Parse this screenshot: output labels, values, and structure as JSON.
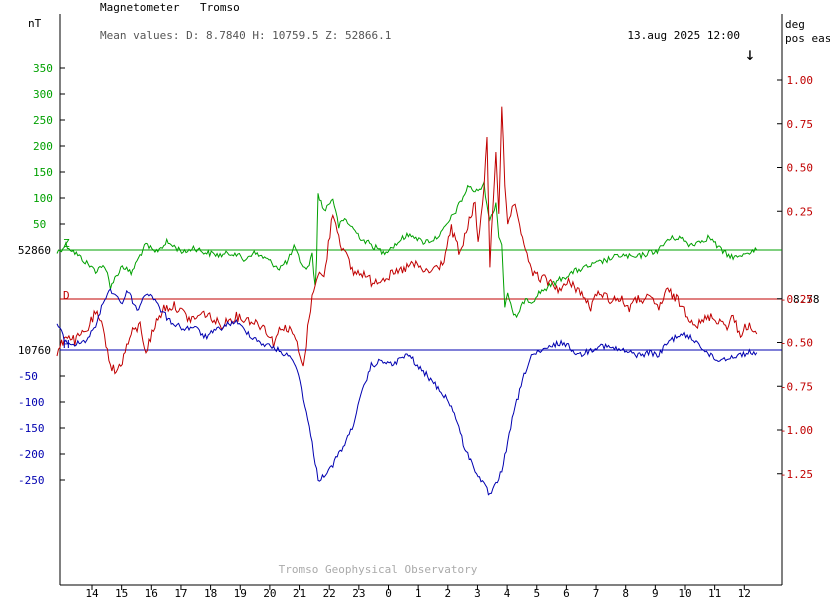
{
  "header": {
    "instrument": "Magnetometer",
    "station": "Tromso",
    "mean_values": "Mean values:  D: 8.7840   H: 10759.5   Z: 52866.1",
    "timestamp": "13.aug 2025 12:00",
    "arrow": "↓"
  },
  "footer": {
    "credit": "Tromso Geophysical Observatory"
  },
  "chart_data": {
    "type": "line",
    "left_axis": {
      "unit": "nT",
      "green_ticks": [
        "350",
        "300",
        "250",
        "200",
        "150",
        "100",
        "50"
      ],
      "blue_ticks": [
        "-50",
        "-100",
        "-150",
        "-200",
        "-250"
      ],
      "z_baseline": "52860",
      "h_baseline": "10760"
    },
    "right_axis": {
      "unit_line1": "deg",
      "unit_line2": "pos east",
      "ticks": [
        "1.00",
        "0.75",
        "0.50",
        "0.25",
        "-0.25",
        "-0.50",
        "-0.75",
        "-1.00",
        "-1.25"
      ],
      "d_baseline": "8.78"
    },
    "x_ticks": [
      "14",
      "15",
      "16",
      "17",
      "18",
      "19",
      "20",
      "21",
      "22",
      "23",
      "0",
      "1",
      "2",
      "3",
      "4",
      "5",
      "6",
      "7",
      "8",
      "9",
      "10",
      "11",
      "12"
    ],
    "series": [
      {
        "name": "Z",
        "color": "#00a000",
        "points": [
          [
            13,
            -5
          ],
          [
            13.3,
            10
          ],
          [
            13.6,
            -5
          ],
          [
            14,
            -25
          ],
          [
            14.3,
            -40
          ],
          [
            14.5,
            -30
          ],
          [
            14.7,
            -45
          ],
          [
            14.8,
            -70
          ],
          [
            15,
            -50
          ],
          [
            15.2,
            -30
          ],
          [
            15.5,
            -45
          ],
          [
            15.8,
            -10
          ],
          [
            16,
            10
          ],
          [
            16.3,
            -5
          ],
          [
            16.5,
            5
          ],
          [
            16.7,
            15
          ],
          [
            17,
            5
          ],
          [
            17.3,
            -5
          ],
          [
            17.6,
            5
          ],
          [
            18,
            -5
          ],
          [
            18.5,
            -10
          ],
          [
            19,
            -5
          ],
          [
            19.3,
            -20
          ],
          [
            19.6,
            -5
          ],
          [
            20,
            -15
          ],
          [
            20.5,
            -35
          ],
          [
            20.8,
            -20
          ],
          [
            21,
            5
          ],
          [
            21.2,
            -20
          ],
          [
            21.4,
            -40
          ],
          [
            21.6,
            -10
          ],
          [
            21.7,
            -70
          ],
          [
            21.75,
            -20
          ],
          [
            21.8,
            110
          ],
          [
            22,
            75
          ],
          [
            22.3,
            100
          ],
          [
            22.5,
            45
          ],
          [
            22.7,
            60
          ],
          [
            23,
            40
          ],
          [
            23.3,
            20
          ],
          [
            23.6,
            10
          ],
          [
            0,
            -5
          ],
          [
            0.4,
            10
          ],
          [
            0.7,
            25
          ],
          [
            1,
            30
          ],
          [
            1.3,
            15
          ],
          [
            1.7,
            20
          ],
          [
            2,
            35
          ],
          [
            2.5,
            80
          ],
          [
            2.9,
            125
          ],
          [
            3.1,
            110
          ],
          [
            3.4,
            125
          ],
          [
            3.6,
            55
          ],
          [
            3.8,
            90
          ],
          [
            3.9,
            30
          ],
          [
            4,
            10
          ],
          [
            4.1,
            -110
          ],
          [
            4.2,
            -80
          ],
          [
            4.4,
            -130
          ],
          [
            4.6,
            -120
          ],
          [
            4.8,
            -90
          ],
          [
            5,
            -100
          ],
          [
            5.3,
            -80
          ],
          [
            5.6,
            -70
          ],
          [
            6,
            -55
          ],
          [
            6.5,
            -40
          ],
          [
            7,
            -30
          ],
          [
            7.5,
            -20
          ],
          [
            8,
            -10
          ],
          [
            8.5,
            -15
          ],
          [
            9,
            -5
          ],
          [
            9.3,
            0
          ],
          [
            9.6,
            20
          ],
          [
            10,
            25
          ],
          [
            10.3,
            10
          ],
          [
            10.6,
            15
          ],
          [
            11,
            25
          ],
          [
            11.3,
            5
          ],
          [
            11.6,
            -10
          ],
          [
            12,
            -15
          ],
          [
            12.2,
            -5
          ],
          [
            12.6,
            0
          ]
        ]
      },
      {
        "name": "D",
        "color": "#c00000",
        "points": [
          [
            13,
            -0.32
          ],
          [
            13.3,
            -0.2
          ],
          [
            13.6,
            -0.24
          ],
          [
            14,
            -0.18
          ],
          [
            14.3,
            -0.08
          ],
          [
            14.5,
            -0.15
          ],
          [
            14.7,
            -0.28
          ],
          [
            14.8,
            -0.38
          ],
          [
            15,
            -0.42
          ],
          [
            15.2,
            -0.35
          ],
          [
            15.5,
            -0.2
          ],
          [
            15.8,
            -0.15
          ],
          [
            16,
            -0.3
          ],
          [
            16.3,
            -0.15
          ],
          [
            16.6,
            -0.05
          ],
          [
            17,
            -0.04
          ],
          [
            17.5,
            -0.12
          ],
          [
            18,
            -0.08
          ],
          [
            18.5,
            -0.15
          ],
          [
            19,
            -0.1
          ],
          [
            19.5,
            -0.12
          ],
          [
            20,
            -0.16
          ],
          [
            20.3,
            -0.25
          ],
          [
            20.6,
            -0.15
          ],
          [
            21,
            -0.2
          ],
          [
            21.3,
            -0.4
          ],
          [
            21.5,
            -0.1
          ],
          [
            21.7,
            0.1
          ],
          [
            21.8,
            0.15
          ],
          [
            22,
            0.12
          ],
          [
            22.3,
            0.5
          ],
          [
            22.6,
            0.3
          ],
          [
            23,
            0.15
          ],
          [
            23.3,
            0.15
          ],
          [
            23.6,
            0.1
          ],
          [
            0,
            0.12
          ],
          [
            0.5,
            0.15
          ],
          [
            1,
            0.2
          ],
          [
            1.5,
            0.15
          ],
          [
            2,
            0.2
          ],
          [
            2.3,
            0.4
          ],
          [
            2.6,
            0.25
          ],
          [
            2.9,
            0.45
          ],
          [
            3.1,
            0.55
          ],
          [
            3.2,
            0.3
          ],
          [
            3.4,
            0.65
          ],
          [
            3.5,
            0.9
          ],
          [
            3.6,
            0.2
          ],
          [
            3.8,
            0.85
          ],
          [
            3.9,
            0.5
          ],
          [
            4,
            1.1
          ],
          [
            4.1,
            0.65
          ],
          [
            4.2,
            0.4
          ],
          [
            4.4,
            0.55
          ],
          [
            4.6,
            0.4
          ],
          [
            4.8,
            0.3
          ],
          [
            5,
            0.15
          ],
          [
            5.3,
            0.12
          ],
          [
            5.6,
            0.1
          ],
          [
            6,
            0.05
          ],
          [
            6.3,
            0.1
          ],
          [
            6.6,
            0.05
          ],
          [
            7,
            -0.05
          ],
          [
            7.3,
            0.05
          ],
          [
            7.6,
            0.0
          ],
          [
            8,
            0.0
          ],
          [
            8.3,
            -0.05
          ],
          [
            8.6,
            0.0
          ],
          [
            9,
            0.0
          ],
          [
            9.3,
            -0.05
          ],
          [
            9.6,
            0.05
          ],
          [
            10,
            -0.02
          ],
          [
            10.3,
            -0.1
          ],
          [
            10.6,
            -0.15
          ],
          [
            11,
            -0.1
          ],
          [
            11.3,
            -0.12
          ],
          [
            11.6,
            -0.15
          ],
          [
            11.8,
            -0.1
          ],
          [
            12,
            -0.2
          ],
          [
            12.3,
            -0.15
          ],
          [
            12.6,
            -0.2
          ]
        ]
      },
      {
        "name": "H",
        "color": "#0000b0",
        "points": [
          [
            13,
            50
          ],
          [
            13.3,
            15
          ],
          [
            13.6,
            10
          ],
          [
            14,
            20
          ],
          [
            14.2,
            35
          ],
          [
            14.4,
            60
          ],
          [
            14.6,
            100
          ],
          [
            14.8,
            115
          ],
          [
            15,
            105
          ],
          [
            15.2,
            90
          ],
          [
            15.4,
            115
          ],
          [
            15.7,
            75
          ],
          [
            16,
            110
          ],
          [
            16.2,
            105
          ],
          [
            16.4,
            85
          ],
          [
            16.6,
            70
          ],
          [
            16.8,
            55
          ],
          [
            17,
            50
          ],
          [
            17.3,
            40
          ],
          [
            17.6,
            45
          ],
          [
            18,
            25
          ],
          [
            18.3,
            35
          ],
          [
            18.6,
            45
          ],
          [
            19,
            55
          ],
          [
            19.3,
            40
          ],
          [
            19.6,
            25
          ],
          [
            20,
            10
          ],
          [
            20.3,
            5
          ],
          [
            20.6,
            -5
          ],
          [
            21,
            -20
          ],
          [
            21.2,
            -60
          ],
          [
            21.4,
            -120
          ],
          [
            21.6,
            -180
          ],
          [
            21.8,
            -250
          ],
          [
            22,
            -240
          ],
          [
            22.2,
            -230
          ],
          [
            22.4,
            -210
          ],
          [
            22.6,
            -190
          ],
          [
            22.8,
            -170
          ],
          [
            23,
            -140
          ],
          [
            23.3,
            -80
          ],
          [
            23.6,
            -30
          ],
          [
            0,
            -20
          ],
          [
            0.3,
            -30
          ],
          [
            0.6,
            -15
          ],
          [
            0.9,
            -10
          ],
          [
            1.2,
            -35
          ],
          [
            1.5,
            -50
          ],
          [
            1.8,
            -70
          ],
          [
            2.1,
            -90
          ],
          [
            2.4,
            -120
          ],
          [
            2.7,
            -180
          ],
          [
            3,
            -220
          ],
          [
            3.3,
            -250
          ],
          [
            3.6,
            -280
          ],
          [
            3.8,
            -260
          ],
          [
            4,
            -230
          ],
          [
            4.2,
            -180
          ],
          [
            4.4,
            -120
          ],
          [
            4.6,
            -80
          ],
          [
            4.8,
            -40
          ],
          [
            5,
            -10
          ],
          [
            5.3,
            -5
          ],
          [
            5.6,
            5
          ],
          [
            6,
            15
          ],
          [
            6.3,
            5
          ],
          [
            6.6,
            -10
          ],
          [
            7,
            0
          ],
          [
            7.3,
            10
          ],
          [
            7.6,
            5
          ],
          [
            8,
            0
          ],
          [
            8.3,
            -5
          ],
          [
            8.6,
            -10
          ],
          [
            9,
            -5
          ],
          [
            9.3,
            -10
          ],
          [
            9.6,
            15
          ],
          [
            10,
            30
          ],
          [
            10.3,
            25
          ],
          [
            10.6,
            15
          ],
          [
            11,
            -10
          ],
          [
            11.3,
            -20
          ],
          [
            11.6,
            -15
          ],
          [
            12,
            -10
          ],
          [
            12.3,
            -5
          ],
          [
            12.6,
            -5
          ]
        ]
      }
    ]
  }
}
